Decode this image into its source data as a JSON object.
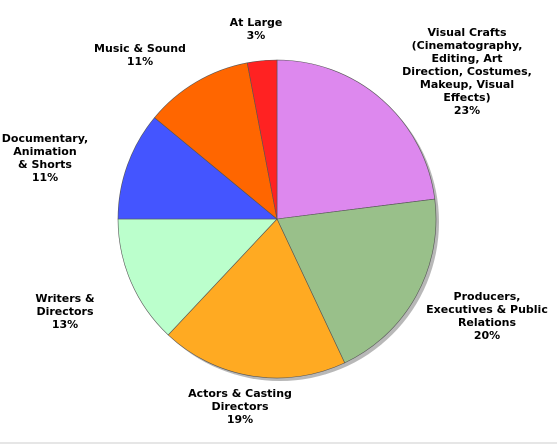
{
  "chart_data": {
    "type": "pie",
    "title": "",
    "legend": "none",
    "start": "12 o'clock",
    "direction": "clockwise",
    "slices": [
      {
        "label": [
          "Visual Crafts",
          "(Cinematography,",
          "Editing, Art",
          "Direction, Costumes,",
          "Makeup, Visual",
          "Effects)"
        ],
        "percent": "23%",
        "value": 23,
        "color": "#dd88ee"
      },
      {
        "label": [
          "Producers,",
          "Executives & Public",
          "Relations"
        ],
        "percent": "20%",
        "value": 20,
        "color": "#99c08a"
      },
      {
        "label": [
          "Actors & Casting",
          "Directors"
        ],
        "percent": "19%",
        "value": 19,
        "color": "#ffaa22"
      },
      {
        "label": [
          "Writers &",
          "Directors"
        ],
        "percent": "13%",
        "value": 13,
        "color": "#bbffcc"
      },
      {
        "label": [
          "Documentary,",
          "Animation",
          "& Shorts"
        ],
        "percent": "11%",
        "value": 11,
        "color": "#4455ff"
      },
      {
        "label": [
          "Music & Sound"
        ],
        "percent": "11%",
        "value": 11,
        "color": "#ff6600"
      },
      {
        "label": [
          "At Large"
        ],
        "percent": "3%",
        "value": 3,
        "color": "#ff2222"
      }
    ]
  }
}
